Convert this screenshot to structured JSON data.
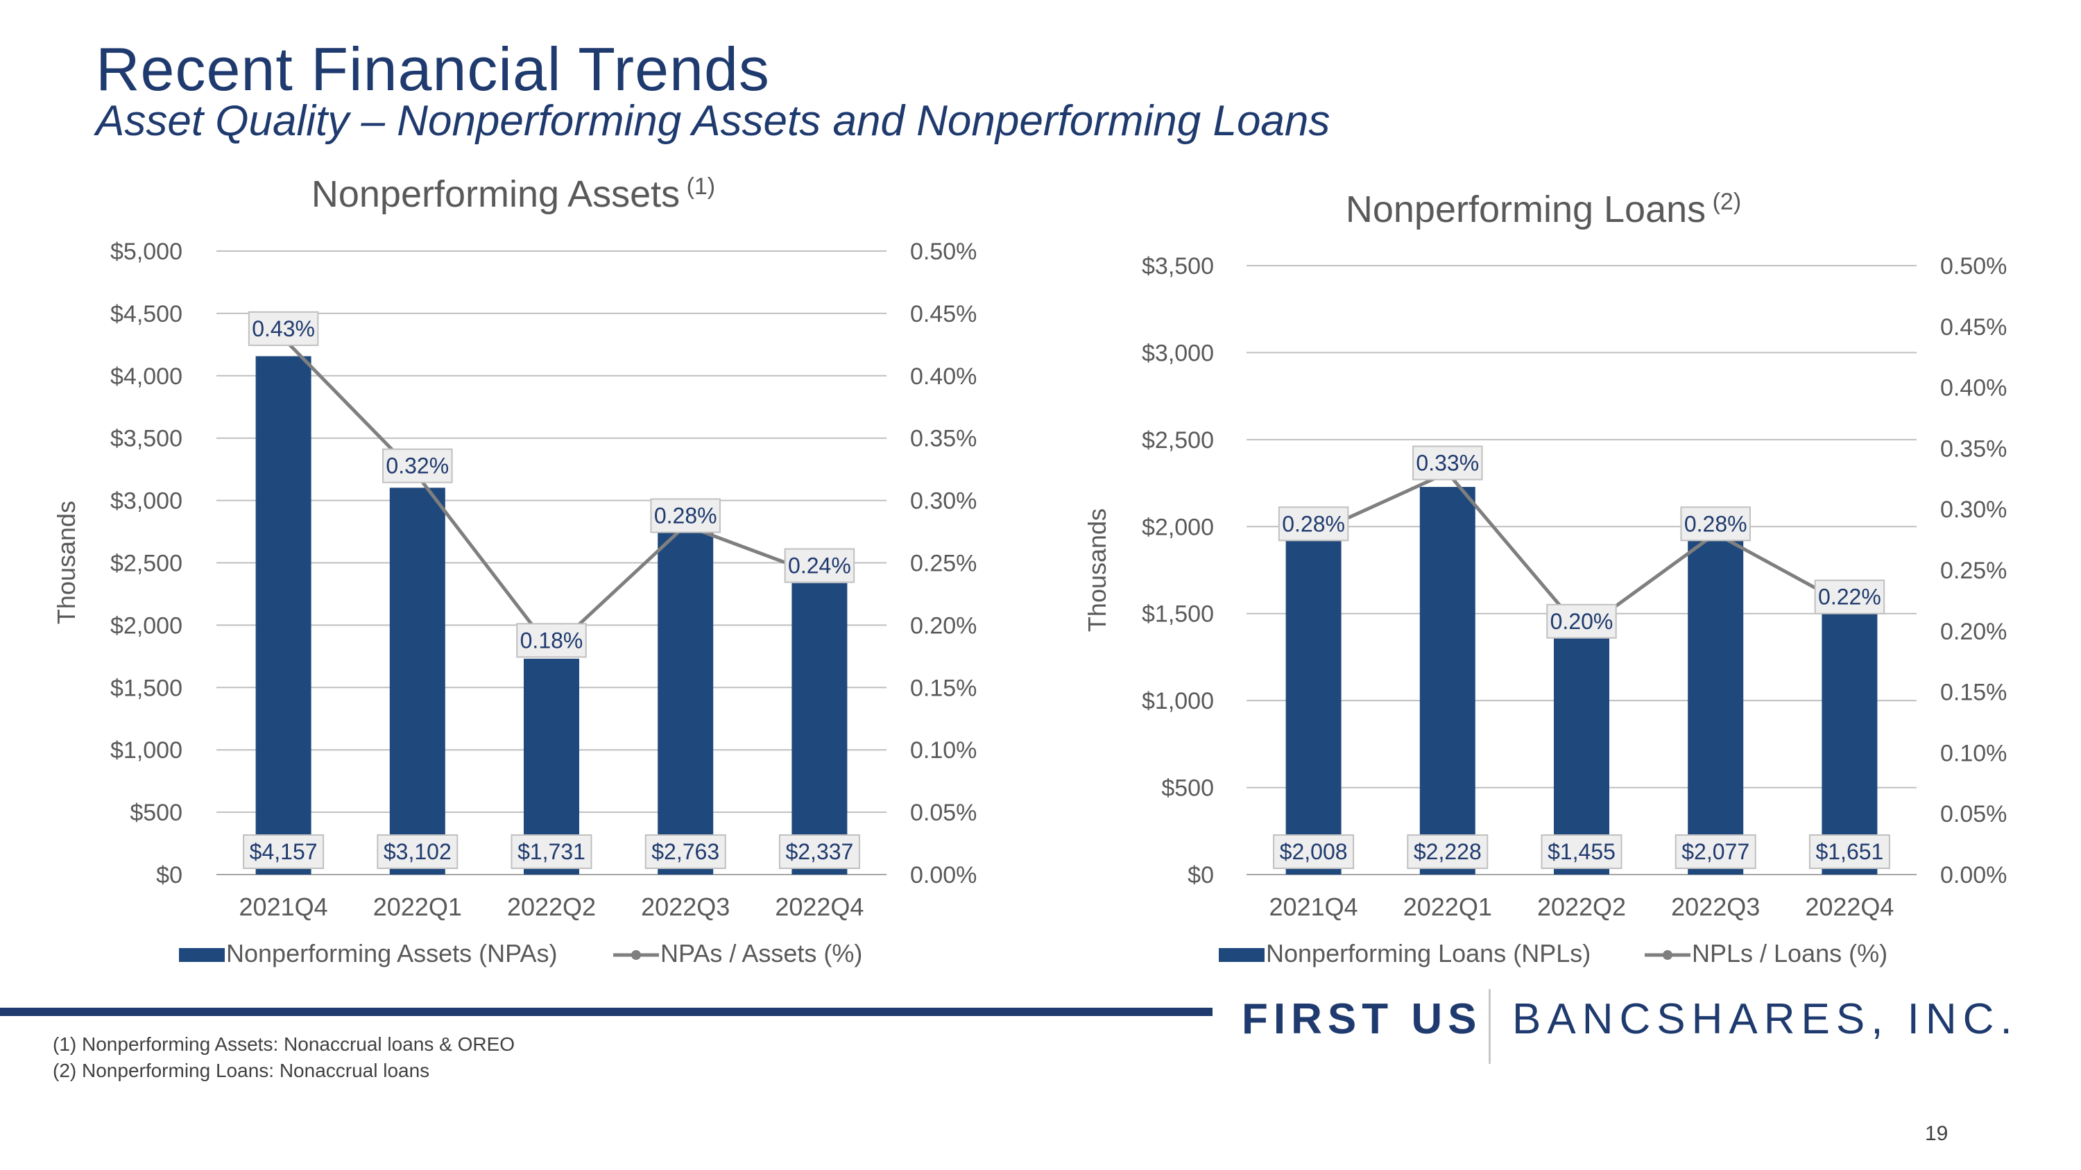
{
  "slide": {
    "title": "Recent Financial Trends",
    "subtitle": "Asset Quality – Nonperforming Assets and Nonperforming Loans",
    "page_number": "19"
  },
  "logo": {
    "first": "FIRST US",
    "rest": "BANCSHARES, INC."
  },
  "footnotes": [
    "(1)  Nonperforming Assets: Nonaccrual loans & OREO",
    "(2)  Nonperforming Loans: Nonaccrual loans"
  ],
  "colors": {
    "bar": "#1f497d",
    "line": "#7f7f7f",
    "title": "#1f3a6e",
    "axis_text": "#595959",
    "grid": "#bfbfbf"
  },
  "chart_data": [
    {
      "type": "bar",
      "title": "Nonperforming Assets",
      "title_note": "(1)",
      "ylabel": "Thousands",
      "categories": [
        "2021Q4",
        "2022Q1",
        "2022Q2",
        "2022Q3",
        "2022Q4"
      ],
      "series": [
        {
          "name": "Nonperforming Assets (NPAs)",
          "type": "bar",
          "axis": "left",
          "values": [
            4157,
            3102,
            1731,
            2763,
            2337
          ],
          "labels": [
            "$4,157",
            "$3,102",
            "$1,731",
            "$2,763",
            "$2,337"
          ]
        },
        {
          "name": "NPAs / Assets (%)",
          "type": "line",
          "axis": "right",
          "values": [
            0.43,
            0.32,
            0.18,
            0.28,
            0.24
          ],
          "labels": [
            "0.43%",
            "0.32%",
            "0.18%",
            "0.28%",
            "0.24%"
          ]
        }
      ],
      "ylim": [
        0,
        5000
      ],
      "y2lim": [
        0,
        0.5
      ],
      "yticks": [
        "$0",
        "$500",
        "$1,000",
        "$1,500",
        "$2,000",
        "$2,500",
        "$3,000",
        "$3,500",
        "$4,000",
        "$4,500",
        "$5,000"
      ],
      "y2ticks": [
        "0.00%",
        "0.05%",
        "0.10%",
        "0.15%",
        "0.20%",
        "0.25%",
        "0.30%",
        "0.35%",
        "0.40%",
        "0.45%",
        "0.50%"
      ],
      "grid": true,
      "legend": "bottom"
    },
    {
      "type": "bar",
      "title": "Nonperforming Loans",
      "title_note": "(2)",
      "ylabel": "Thousands",
      "categories": [
        "2021Q4",
        "2022Q1",
        "2022Q2",
        "2022Q3",
        "2022Q4"
      ],
      "series": [
        {
          "name": "Nonperforming Loans (NPLs)",
          "type": "bar",
          "axis": "left",
          "values": [
            2008,
            2228,
            1455,
            2077,
            1651
          ],
          "labels": [
            "$2,008",
            "$2,228",
            "$1,455",
            "$2,077",
            "$1,651"
          ]
        },
        {
          "name": "NPLs / Loans (%)",
          "type": "line",
          "axis": "right",
          "values": [
            0.28,
            0.33,
            0.2,
            0.28,
            0.22
          ],
          "labels": [
            "0.28%",
            "0.33%",
            "0.20%",
            "0.28%",
            "0.22%"
          ]
        }
      ],
      "ylim": [
        0,
        3500
      ],
      "y2lim": [
        0,
        0.5
      ],
      "yticks": [
        "$0",
        "$500",
        "$1,000",
        "$1,500",
        "$2,000",
        "$2,500",
        "$3,000",
        "$3,500"
      ],
      "y2ticks": [
        "0.00%",
        "0.05%",
        "0.10%",
        "0.15%",
        "0.20%",
        "0.25%",
        "0.30%",
        "0.35%",
        "0.40%",
        "0.45%",
        "0.50%"
      ],
      "grid": true,
      "legend": "bottom"
    }
  ]
}
